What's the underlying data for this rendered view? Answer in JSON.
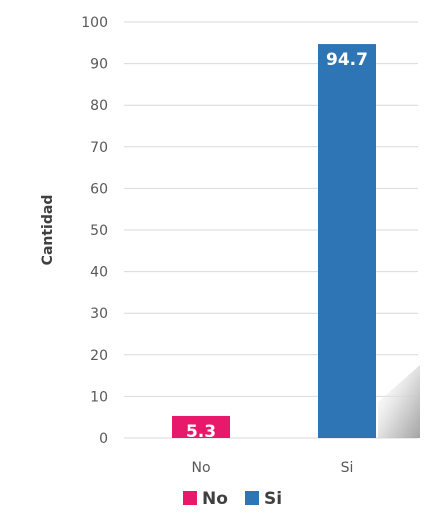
{
  "chart_data": {
    "type": "bar",
    "categories": [
      "No",
      "Si"
    ],
    "values": [
      5.3,
      94.7
    ],
    "data_labels": [
      "5.3",
      "94.7"
    ],
    "colors": [
      "#e8196b",
      "#2e75b6"
    ],
    "title": "",
    "xlabel": "",
    "ylabel": "Cantidad",
    "ylim": [
      0,
      100
    ],
    "yticks": [
      "0",
      "10",
      "20",
      "30",
      "40",
      "50",
      "60",
      "70",
      "80",
      "90",
      "100"
    ],
    "grid": true,
    "legend": {
      "position": "bottom",
      "entries": [
        {
          "label": "No",
          "color": "#e8196b"
        },
        {
          "label": "Si",
          "color": "#2e75b6"
        }
      ]
    }
  }
}
